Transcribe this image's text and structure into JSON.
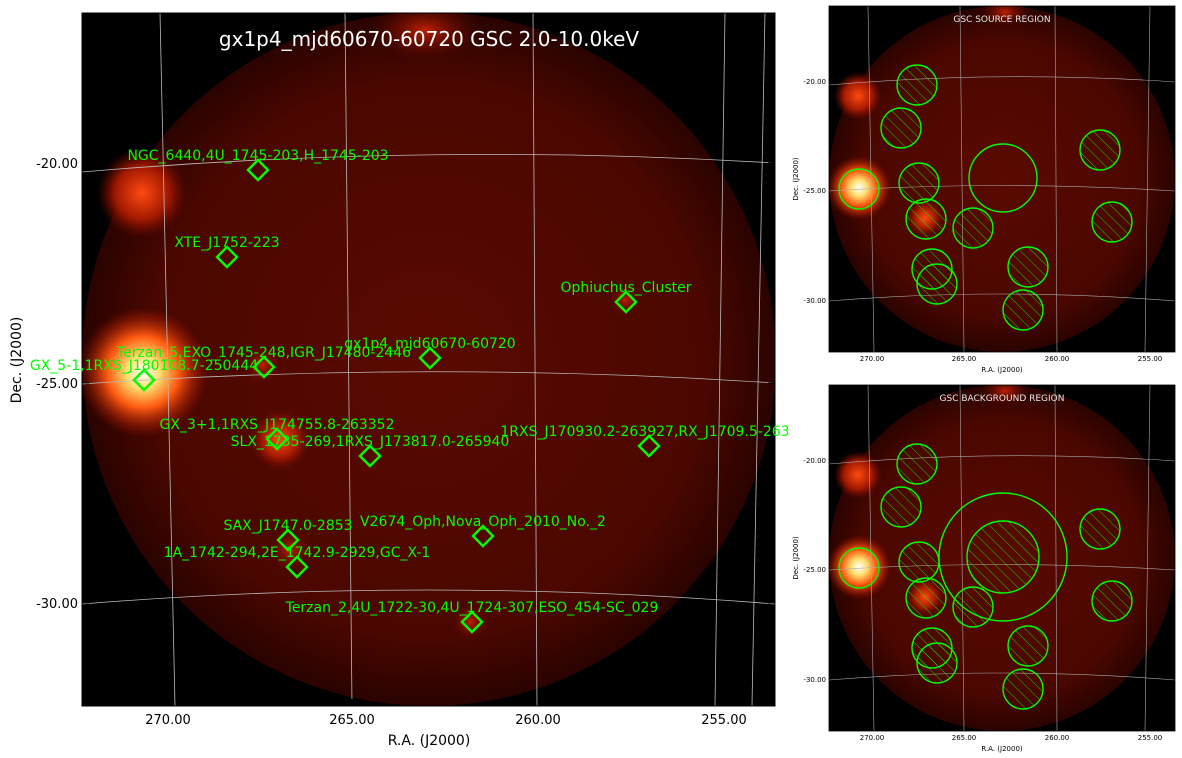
{
  "main_panel": {
    "title": "gx1p4_mjd60670-60720 GSC 2.0-10.0keV",
    "xlabel": "R.A. (J2000)",
    "ylabel": "Dec. (J2000)",
    "xticks": [
      "270.00",
      "265.00",
      "260.00",
      "255.00"
    ],
    "yticks": [
      "-20.00",
      "-25.00",
      "-30.00"
    ],
    "sources": [
      {
        "label": "NGC_6440,4U_1745-203,H_1745-203"
      },
      {
        "label": "XTE_J1752-223"
      },
      {
        "label": "Ophiuchus_Cluster"
      },
      {
        "label": "gx1p4_mjd60670-60720"
      },
      {
        "label": "Terzan_5,EXO_1745-248,IGR_J17480-2446"
      },
      {
        "label": "GX_5-1,1RXS_J180108.7-250444"
      },
      {
        "label": "GX_3+1,1RXS_J174755.8-263352"
      },
      {
        "label": "SLX_1735-269,1RXS_J173817.0-265940"
      },
      {
        "label": "1RXS_J170930.2-263927,RX_J1709.5-263"
      },
      {
        "label": "SAX_J1747.0-2853"
      },
      {
        "label": "V2674_Oph,Nova_Oph_2010_No._2"
      },
      {
        "label": "1A_1742-294,2E_1742.9-2929,GC_X-1"
      },
      {
        "label": "Terzan_2,4U_1722-30,4U_1724-307,ESO_454-SC_029"
      }
    ]
  },
  "source_panel": {
    "title": "GSC SOURCE REGION",
    "xlabel": "R.A. (J2000)",
    "ylabel": "Dec. (J2000)",
    "xticks": [
      "270.00",
      "265.00",
      "260.00",
      "255.00"
    ],
    "yticks": [
      "-20.00",
      "-25.00",
      "-30.00"
    ]
  },
  "background_panel": {
    "title": "GSC BACKGROUND REGION",
    "xlabel": "R.A. (J2000)",
    "ylabel": "Dec. (J2000)",
    "xticks": [
      "270.00",
      "265.00",
      "260.00",
      "255.00"
    ],
    "yticks": [
      "-20.00",
      "-25.00",
      "-30.00"
    ]
  },
  "colors": {
    "marker": "#00ff00",
    "grid": "#bbbbbb",
    "background": "#000000",
    "glow": "#d02000"
  }
}
